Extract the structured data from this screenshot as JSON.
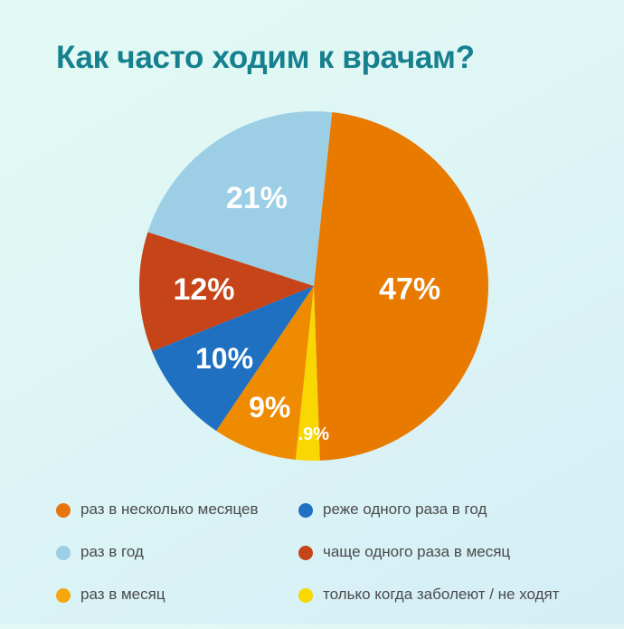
{
  "title": "Как часто ходим к врачам?",
  "colors": {
    "title": "#16808e",
    "background_top": "#e3faf4",
    "background_bottom": "#d4eef6",
    "legend_text": "#4a4a4a",
    "slice_label_text": "#ffffff"
  },
  "chart_data": {
    "type": "pie",
    "title": "Как часто ходим к врачам?",
    "legend_position": "bottom",
    "value_labels": "white text on slices",
    "center": [
      347,
      316
    ],
    "radius": 193,
    "start_angle_deg": 6,
    "slices": [
      {
        "label": "раз в несколько месяцев",
        "value": 47,
        "display": "47%",
        "color": "#e87a00",
        "sweep_deg": 172,
        "label_r": 0.55,
        "font_px": 34
      },
      {
        "label": "только когда заболеют / не ходят",
        "value": 0.9,
        "display": "0.9%",
        "color": "#f8d800",
        "sweep_deg": 8,
        "label_r": 0.85,
        "font_px": 20
      },
      {
        "label": "раз в месяц",
        "value": 9,
        "display": "9%",
        "color": "#ee8b00",
        "sweep_deg": 28,
        "label_r": 0.74,
        "font_px": 32
      },
      {
        "label": "реже одного раза в год",
        "value": 10,
        "display": "10%",
        "color": "#1f70c1",
        "sweep_deg": 34,
        "label_r": 0.66,
        "font_px": 32
      },
      {
        "label": "чаще одного раза в месяц",
        "value": 12,
        "display": "12%",
        "color": "#c64418",
        "sweep_deg": 40,
        "label_r": 0.63,
        "font_px": 34
      },
      {
        "label": "раз в год",
        "value": 21,
        "display": "21%",
        "color": "#9ccee6",
        "sweep_deg": 78,
        "label_r": 0.6,
        "font_px": 34
      }
    ]
  },
  "legend": {
    "columns": [
      {
        "items": [
          {
            "label": "раз в несколько месяцев",
            "color": "#e8740e"
          },
          {
            "label": "раз в год",
            "color": "#9ccee6"
          },
          {
            "label": "раз в месяц",
            "color": "#f6a70b"
          }
        ]
      },
      {
        "items": [
          {
            "label": "реже одного раза в год",
            "color": "#1f70c1"
          },
          {
            "label": "чаще одного раза в месяц",
            "color": "#c64418"
          },
          {
            "label": "только когда заболеют / не ходят",
            "color": "#f8d800"
          }
        ]
      }
    ]
  }
}
